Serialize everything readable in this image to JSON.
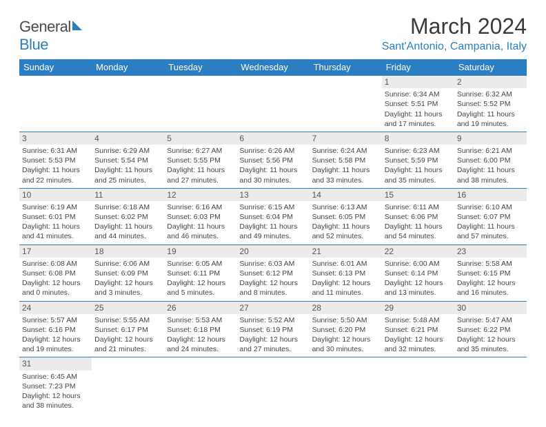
{
  "brand": {
    "part1": "General",
    "part2": "Blue"
  },
  "title": "March 2024",
  "location": "Sant'Antonio, Campania, Italy",
  "colors": {
    "accent": "#2b7ec2",
    "header_text": "#ffffff",
    "text": "#444444",
    "daynum_bg": "#eceaea"
  },
  "weekdays": [
    "Sunday",
    "Monday",
    "Tuesday",
    "Wednesday",
    "Thursday",
    "Friday",
    "Saturday"
  ],
  "weeks": [
    [
      null,
      null,
      null,
      null,
      null,
      {
        "n": "1",
        "sunrise": "Sunrise: 6:34 AM",
        "sunset": "Sunset: 5:51 PM",
        "day1": "Daylight: 11 hours",
        "day2": "and 17 minutes."
      },
      {
        "n": "2",
        "sunrise": "Sunrise: 6:32 AM",
        "sunset": "Sunset: 5:52 PM",
        "day1": "Daylight: 11 hours",
        "day2": "and 19 minutes."
      }
    ],
    [
      {
        "n": "3",
        "sunrise": "Sunrise: 6:31 AM",
        "sunset": "Sunset: 5:53 PM",
        "day1": "Daylight: 11 hours",
        "day2": "and 22 minutes."
      },
      {
        "n": "4",
        "sunrise": "Sunrise: 6:29 AM",
        "sunset": "Sunset: 5:54 PM",
        "day1": "Daylight: 11 hours",
        "day2": "and 25 minutes."
      },
      {
        "n": "5",
        "sunrise": "Sunrise: 6:27 AM",
        "sunset": "Sunset: 5:55 PM",
        "day1": "Daylight: 11 hours",
        "day2": "and 27 minutes."
      },
      {
        "n": "6",
        "sunrise": "Sunrise: 6:26 AM",
        "sunset": "Sunset: 5:56 PM",
        "day1": "Daylight: 11 hours",
        "day2": "and 30 minutes."
      },
      {
        "n": "7",
        "sunrise": "Sunrise: 6:24 AM",
        "sunset": "Sunset: 5:58 PM",
        "day1": "Daylight: 11 hours",
        "day2": "and 33 minutes."
      },
      {
        "n": "8",
        "sunrise": "Sunrise: 6:23 AM",
        "sunset": "Sunset: 5:59 PM",
        "day1": "Daylight: 11 hours",
        "day2": "and 35 minutes."
      },
      {
        "n": "9",
        "sunrise": "Sunrise: 6:21 AM",
        "sunset": "Sunset: 6:00 PM",
        "day1": "Daylight: 11 hours",
        "day2": "and 38 minutes."
      }
    ],
    [
      {
        "n": "10",
        "sunrise": "Sunrise: 6:19 AM",
        "sunset": "Sunset: 6:01 PM",
        "day1": "Daylight: 11 hours",
        "day2": "and 41 minutes."
      },
      {
        "n": "11",
        "sunrise": "Sunrise: 6:18 AM",
        "sunset": "Sunset: 6:02 PM",
        "day1": "Daylight: 11 hours",
        "day2": "and 44 minutes."
      },
      {
        "n": "12",
        "sunrise": "Sunrise: 6:16 AM",
        "sunset": "Sunset: 6:03 PM",
        "day1": "Daylight: 11 hours",
        "day2": "and 46 minutes."
      },
      {
        "n": "13",
        "sunrise": "Sunrise: 6:15 AM",
        "sunset": "Sunset: 6:04 PM",
        "day1": "Daylight: 11 hours",
        "day2": "and 49 minutes."
      },
      {
        "n": "14",
        "sunrise": "Sunrise: 6:13 AM",
        "sunset": "Sunset: 6:05 PM",
        "day1": "Daylight: 11 hours",
        "day2": "and 52 minutes."
      },
      {
        "n": "15",
        "sunrise": "Sunrise: 6:11 AM",
        "sunset": "Sunset: 6:06 PM",
        "day1": "Daylight: 11 hours",
        "day2": "and 54 minutes."
      },
      {
        "n": "16",
        "sunrise": "Sunrise: 6:10 AM",
        "sunset": "Sunset: 6:07 PM",
        "day1": "Daylight: 11 hours",
        "day2": "and 57 minutes."
      }
    ],
    [
      {
        "n": "17",
        "sunrise": "Sunrise: 6:08 AM",
        "sunset": "Sunset: 6:08 PM",
        "day1": "Daylight: 12 hours",
        "day2": "and 0 minutes."
      },
      {
        "n": "18",
        "sunrise": "Sunrise: 6:06 AM",
        "sunset": "Sunset: 6:09 PM",
        "day1": "Daylight: 12 hours",
        "day2": "and 3 minutes."
      },
      {
        "n": "19",
        "sunrise": "Sunrise: 6:05 AM",
        "sunset": "Sunset: 6:11 PM",
        "day1": "Daylight: 12 hours",
        "day2": "and 5 minutes."
      },
      {
        "n": "20",
        "sunrise": "Sunrise: 6:03 AM",
        "sunset": "Sunset: 6:12 PM",
        "day1": "Daylight: 12 hours",
        "day2": "and 8 minutes."
      },
      {
        "n": "21",
        "sunrise": "Sunrise: 6:01 AM",
        "sunset": "Sunset: 6:13 PM",
        "day1": "Daylight: 12 hours",
        "day2": "and 11 minutes."
      },
      {
        "n": "22",
        "sunrise": "Sunrise: 6:00 AM",
        "sunset": "Sunset: 6:14 PM",
        "day1": "Daylight: 12 hours",
        "day2": "and 13 minutes."
      },
      {
        "n": "23",
        "sunrise": "Sunrise: 5:58 AM",
        "sunset": "Sunset: 6:15 PM",
        "day1": "Daylight: 12 hours",
        "day2": "and 16 minutes."
      }
    ],
    [
      {
        "n": "24",
        "sunrise": "Sunrise: 5:57 AM",
        "sunset": "Sunset: 6:16 PM",
        "day1": "Daylight: 12 hours",
        "day2": "and 19 minutes."
      },
      {
        "n": "25",
        "sunrise": "Sunrise: 5:55 AM",
        "sunset": "Sunset: 6:17 PM",
        "day1": "Daylight: 12 hours",
        "day2": "and 21 minutes."
      },
      {
        "n": "26",
        "sunrise": "Sunrise: 5:53 AM",
        "sunset": "Sunset: 6:18 PM",
        "day1": "Daylight: 12 hours",
        "day2": "and 24 minutes."
      },
      {
        "n": "27",
        "sunrise": "Sunrise: 5:52 AM",
        "sunset": "Sunset: 6:19 PM",
        "day1": "Daylight: 12 hours",
        "day2": "and 27 minutes."
      },
      {
        "n": "28",
        "sunrise": "Sunrise: 5:50 AM",
        "sunset": "Sunset: 6:20 PM",
        "day1": "Daylight: 12 hours",
        "day2": "and 30 minutes."
      },
      {
        "n": "29",
        "sunrise": "Sunrise: 5:48 AM",
        "sunset": "Sunset: 6:21 PM",
        "day1": "Daylight: 12 hours",
        "day2": "and 32 minutes."
      },
      {
        "n": "30",
        "sunrise": "Sunrise: 5:47 AM",
        "sunset": "Sunset: 6:22 PM",
        "day1": "Daylight: 12 hours",
        "day2": "and 35 minutes."
      }
    ],
    [
      {
        "n": "31",
        "sunrise": "Sunrise: 6:45 AM",
        "sunset": "Sunset: 7:23 PM",
        "day1": "Daylight: 12 hours",
        "day2": "and 38 minutes."
      },
      null,
      null,
      null,
      null,
      null,
      null
    ]
  ]
}
